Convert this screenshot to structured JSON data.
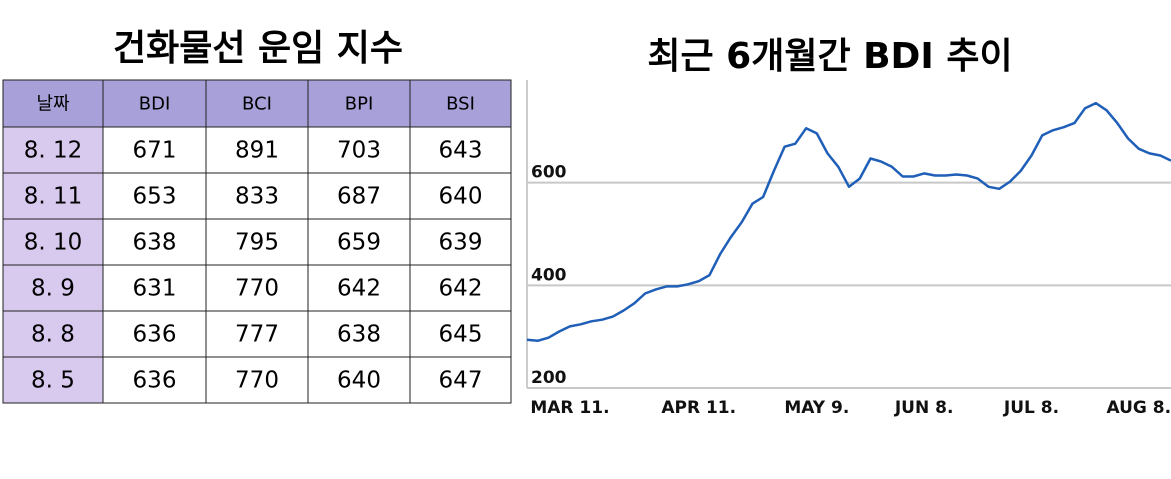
{
  "table": {
    "title": "건화물선 운임 지수",
    "header": [
      "날짜",
      "BDI",
      "BCI",
      "BPI",
      "BSI"
    ],
    "rows": [
      [
        "8. 12",
        671,
        891,
        703,
        643
      ],
      [
        "8. 11",
        653,
        833,
        687,
        640
      ],
      [
        "8. 10",
        638,
        795,
        659,
        639
      ],
      [
        "8. 9",
        631,
        770,
        642,
        642
      ],
      [
        "8. 8",
        636,
        777,
        638,
        645
      ],
      [
        "8. 5",
        636,
        770,
        640,
        647
      ]
    ]
  },
  "chart_data": {
    "type": "line",
    "title": "최근 6개월간 BDI 추이",
    "categories": [
      null,
      null,
      null,
      null,
      "MAR 11.",
      null,
      null,
      null,
      null,
      null,
      null,
      null,
      null,
      null,
      null,
      null,
      "APR 11.",
      null,
      null,
      null,
      null,
      null,
      null,
      null,
      null,
      null,
      null,
      "MAY 9.",
      null,
      null,
      null,
      null,
      null,
      null,
      null,
      null,
      null,
      "JUN 8.",
      null,
      null,
      null,
      null,
      null,
      null,
      null,
      null,
      null,
      "JUL 8.",
      null,
      null,
      null,
      null,
      null,
      null,
      null,
      null,
      null,
      "AUG 8.",
      null,
      null,
      null
    ],
    "series": [
      {
        "name": "BDI",
        "color": "#1f5fb8",
        "values": [
          294,
          292,
          298,
          310,
          320,
          324,
          330,
          333,
          339,
          351,
          365,
          384,
          392,
          398,
          398,
          402,
          408,
          420,
          461,
          494,
          523,
          559,
          572,
          623,
          670,
          676,
          706,
          696,
          657,
          631,
          592,
          608,
          647,
          641,
          631,
          612,
          612,
          618,
          614,
          614,
          616,
          614,
          608,
          592,
          588,
          602,
          623,
          653,
          692,
          702,
          708,
          716,
          745,
          755,
          741,
          716,
          686,
          666,
          657,
          653,
          643
        ]
      }
    ],
    "ylim": [
      200,
      800
    ],
    "yticks": [
      200,
      400,
      600
    ],
    "grid": true
  }
}
